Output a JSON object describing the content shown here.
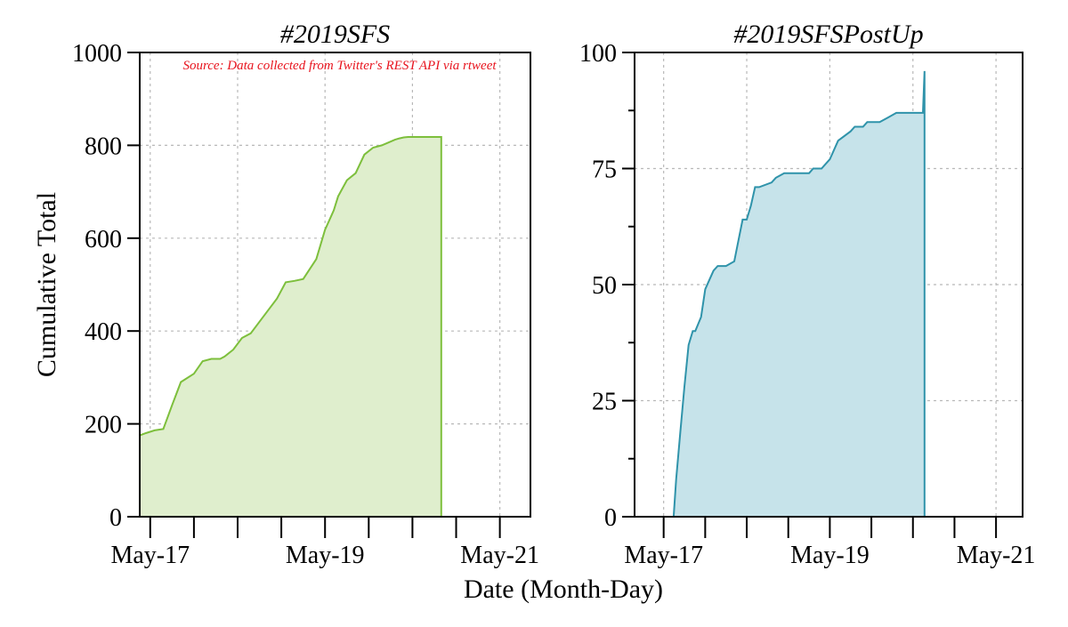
{
  "colors": {
    "sfs_line": "#7dbf3c",
    "sfs_fill": "#dfeecd",
    "postup_line": "#2f93aa",
    "postup_fill": "#c6e3ea",
    "source_text": "#e8141e"
  },
  "figure": {
    "xlabel": "Date (Month-Day)",
    "ylabel": "Cumulative Total"
  },
  "chart_data": [
    {
      "type": "area",
      "title": "#2019SFS",
      "annotation": "Source: Data collected from Twitter's REST API via rtweet",
      "xlabel": "Date (Month-Day)",
      "ylabel": "Cumulative Total",
      "x_unit": "days since May-16 00:00",
      "xlim": [
        0.88,
        5.35
      ],
      "ylim": [
        0,
        1000
      ],
      "y_ticks": [
        0,
        200,
        400,
        600,
        800,
        1000
      ],
      "y_tick_labels": [
        "0",
        "200",
        "400",
        "600",
        "800",
        "1000"
      ],
      "x_ticks": [
        1,
        1.5,
        2,
        2.5,
        3,
        3.5,
        4,
        4.5,
        5
      ],
      "x_tick_labels": [
        {
          "x": 1,
          "label": "May-17"
        },
        {
          "x": 3,
          "label": "May-19"
        },
        {
          "x": 5,
          "label": "May-21"
        }
      ],
      "x_grid": [
        1,
        2,
        3,
        4,
        5
      ],
      "y_grid": [
        200,
        400,
        600,
        800
      ],
      "series": [
        {
          "name": "#2019SFS",
          "x": [
            0.88,
            0.95,
            1.05,
            1.15,
            1.25,
            1.35,
            1.5,
            1.6,
            1.7,
            1.8,
            1.85,
            1.95,
            2.05,
            2.15,
            2.25,
            2.35,
            2.45,
            2.55,
            2.65,
            2.75,
            2.9,
            3.0,
            3.1,
            3.15,
            3.25,
            3.35,
            3.45,
            3.55,
            3.65,
            3.75,
            3.8,
            3.85,
            3.9,
            3.95,
            4.0,
            4.05,
            4.1,
            4.15,
            4.28,
            4.33
          ],
          "values": [
            175,
            180,
            186,
            189,
            240,
            290,
            308,
            335,
            340,
            340,
            345,
            360,
            385,
            395,
            420,
            445,
            470,
            505,
            508,
            512,
            555,
            618,
            660,
            690,
            725,
            740,
            780,
            795,
            800,
            808,
            812,
            815,
            817,
            818,
            818,
            818,
            818,
            818,
            818,
            818
          ]
        }
      ]
    },
    {
      "type": "area",
      "title": "#2019SFSPostUp",
      "xlabel": "Date (Month-Day)",
      "ylabel": "",
      "x_unit": "days since May-16 00:00",
      "xlim": [
        0.65,
        5.32
      ],
      "ylim": [
        0,
        100
      ],
      "y_ticks": [
        0,
        25,
        50,
        75,
        100
      ],
      "y_tick_labels": [
        "0",
        "25",
        "50",
        "75",
        "100"
      ],
      "y_minor_ticks": [
        12.5,
        37.5,
        62.5,
        87.5
      ],
      "x_ticks": [
        1,
        1.5,
        2,
        2.5,
        3,
        3.5,
        4,
        4.5,
        5
      ],
      "x_tick_labels": [
        {
          "x": 1,
          "label": "May-17"
        },
        {
          "x": 3,
          "label": "May-19"
        },
        {
          "x": 5,
          "label": "May-21"
        }
      ],
      "x_grid": [
        1,
        2,
        3,
        4,
        5
      ],
      "y_grid": [
        25,
        50,
        75
      ],
      "series": [
        {
          "name": "#2019SFSPostUp",
          "x": [
            1.12,
            1.15,
            1.2,
            1.25,
            1.3,
            1.35,
            1.38,
            1.45,
            1.5,
            1.55,
            1.6,
            1.65,
            1.7,
            1.75,
            1.85,
            1.95,
            2.0,
            2.05,
            2.1,
            2.15,
            2.3,
            2.35,
            2.45,
            2.5,
            2.6,
            2.7,
            2.75,
            2.8,
            2.9,
            3.0,
            3.1,
            3.25,
            3.3,
            3.4,
            3.45,
            3.55,
            3.6,
            3.7,
            3.8,
            3.9,
            4.0,
            4.1,
            4.12,
            4.14
          ],
          "values": [
            0,
            8,
            18,
            28,
            37,
            40,
            40,
            43,
            49,
            51,
            53,
            54,
            54,
            54,
            55,
            64,
            64,
            67,
            71,
            71,
            72,
            73,
            74,
            74,
            74,
            74,
            74,
            75,
            75,
            77,
            81,
            83,
            84,
            84,
            85,
            85,
            85,
            86,
            87,
            87,
            87,
            87,
            87,
            96
          ]
        }
      ]
    }
  ]
}
